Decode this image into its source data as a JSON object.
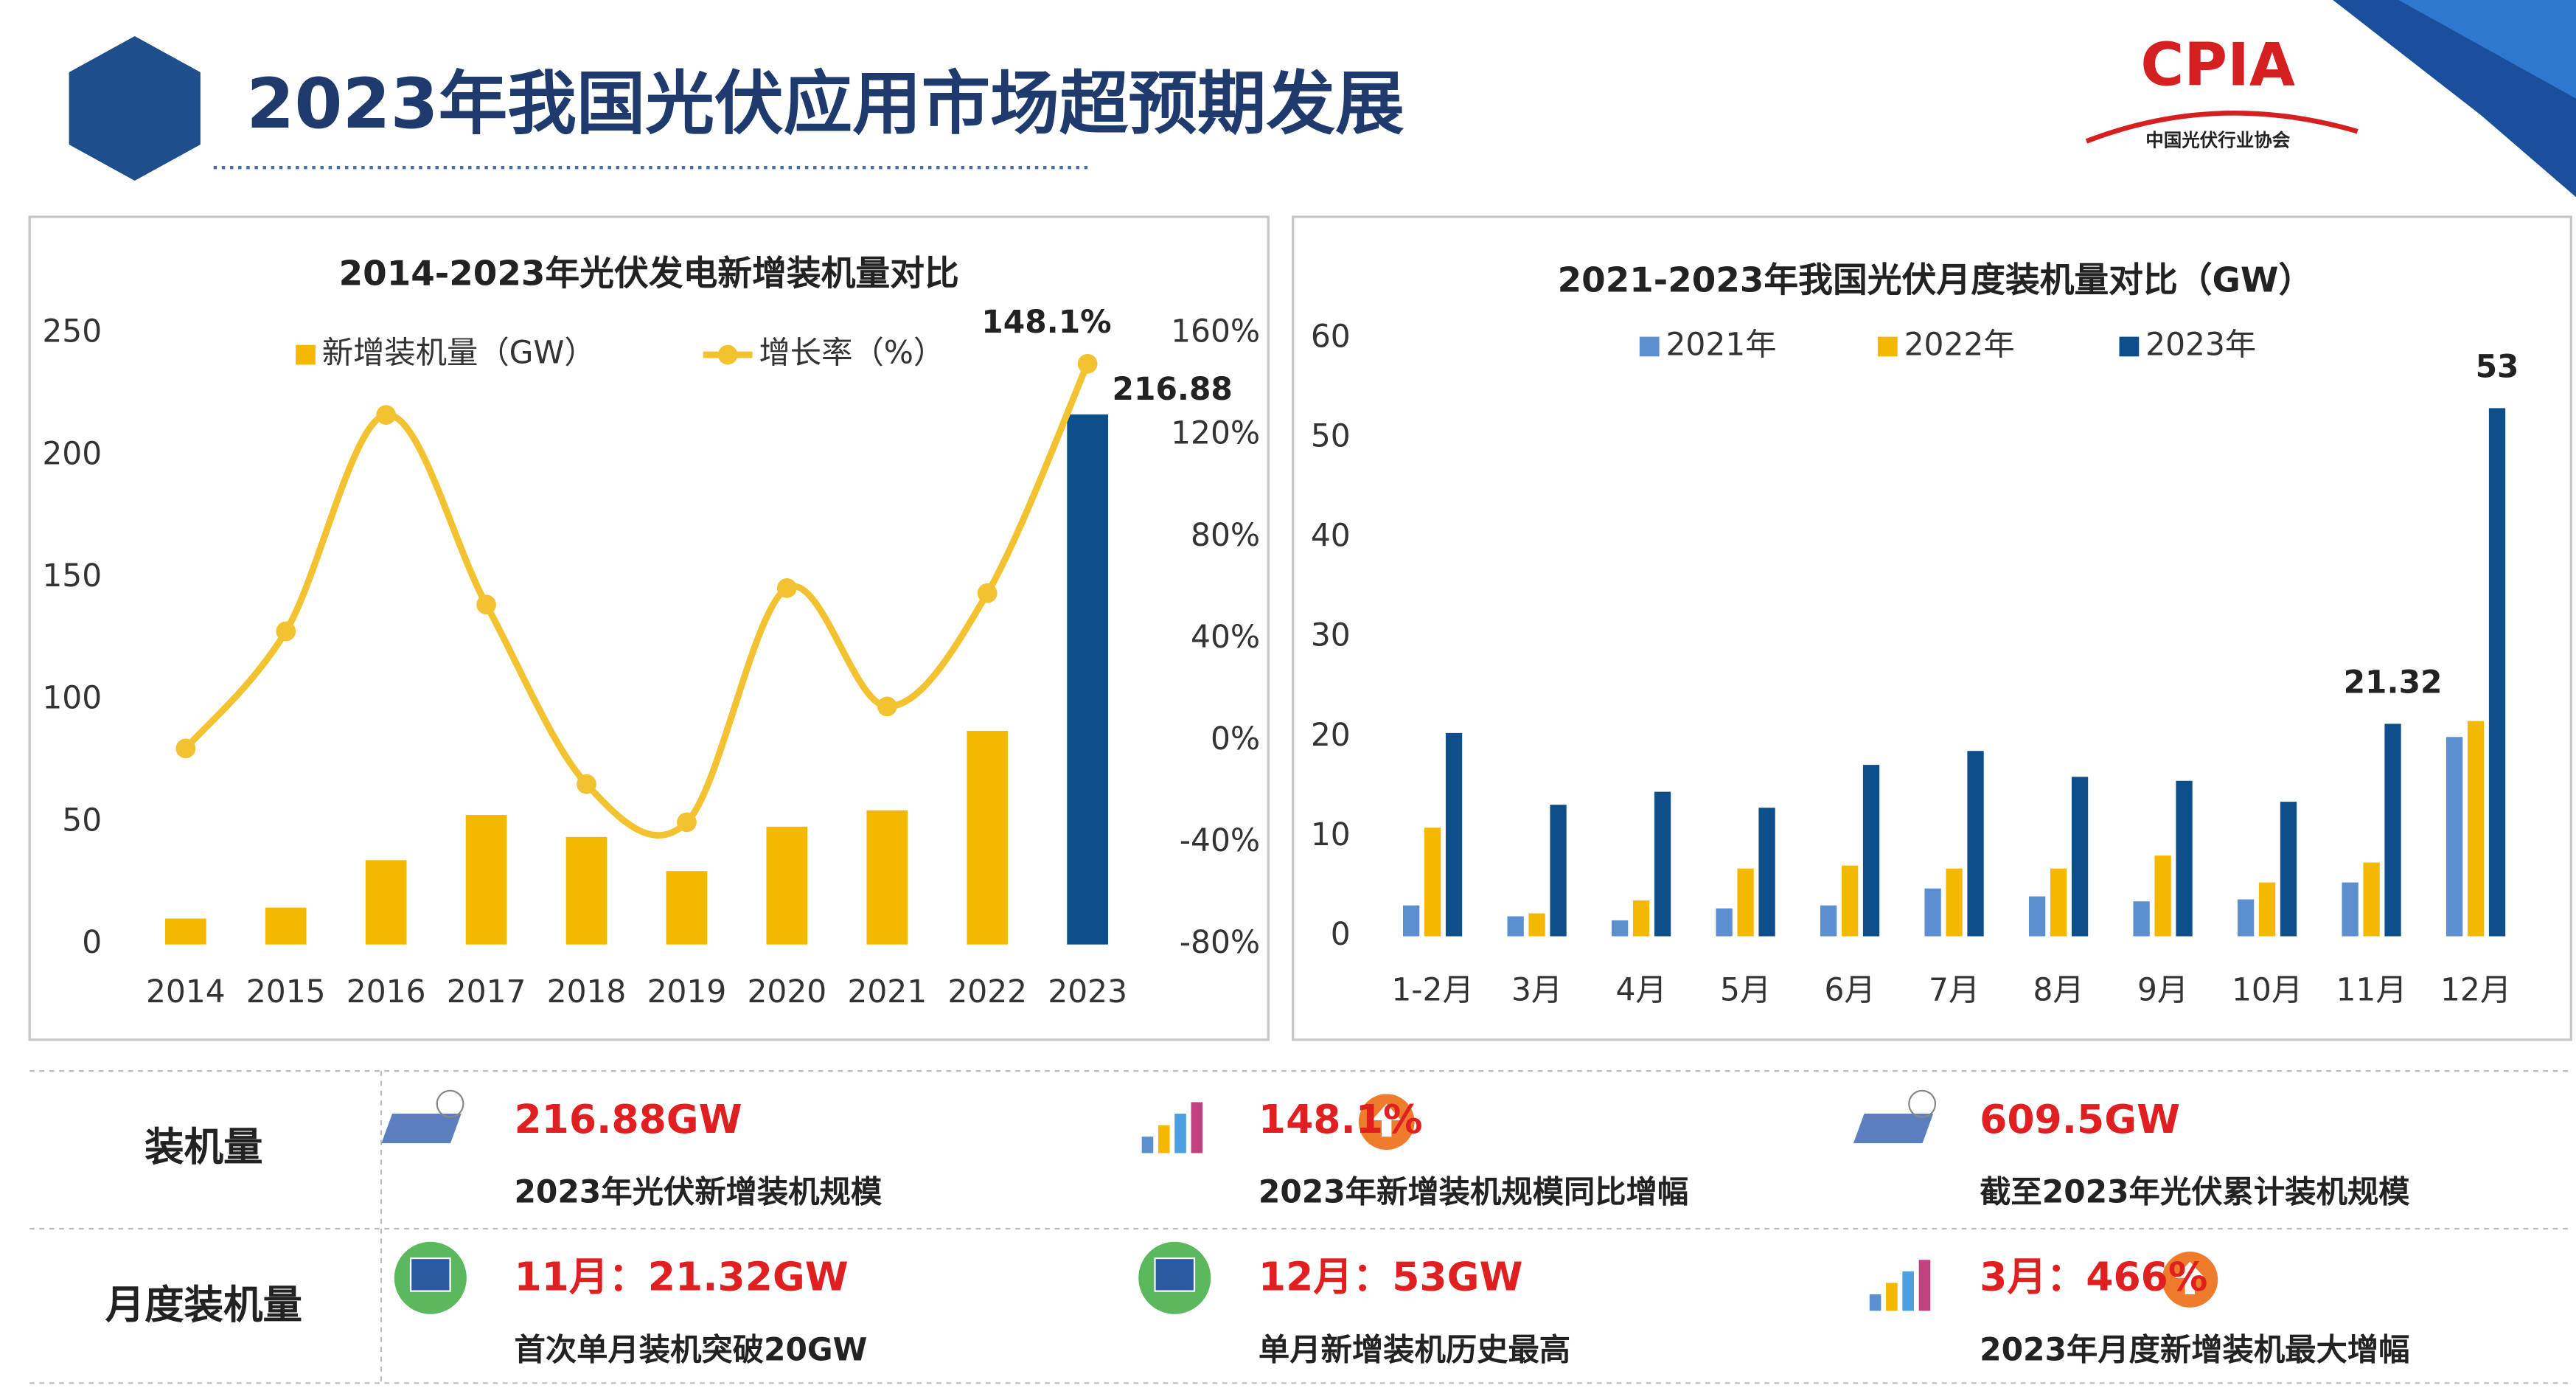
{
  "header": {
    "title": "2023年我国光伏应用市场超预期发展",
    "logo": "CPIA",
    "logo_subtitle": "中国光伏行业协会"
  },
  "chart_data": [
    {
      "type": "bar",
      "title": "2014-2023年光伏发电新增装机量对比",
      "categories": [
        "2014",
        "2015",
        "2016",
        "2017",
        "2018",
        "2019",
        "2020",
        "2021",
        "2022",
        "2023"
      ],
      "series": [
        {
          "name": "新增装机量（GW）",
          "color": "#f5b800",
          "colors": [
            "#f5b800",
            "#f5b800",
            "#f5b800",
            "#f5b800",
            "#f5b800",
            "#f5b800",
            "#f5b800",
            "#f5b800",
            "#f5b800",
            "#0d4f8b"
          ],
          "values": [
            10.6,
            15.1,
            34.5,
            53,
            44,
            30,
            48.2,
            54.9,
            87.4,
            216.88
          ],
          "value_labels": [
            null,
            null,
            null,
            null,
            null,
            null,
            null,
            null,
            null,
            "216.88"
          ]
        },
        {
          "name": "增长率（%）",
          "type": "line",
          "axis": "y2",
          "color": "#f2c230",
          "values": [
            -3,
            43,
            128,
            53.5,
            -17,
            -32,
            60,
            13.5,
            58,
            148.1
          ],
          "value_labels": [
            null,
            null,
            null,
            null,
            null,
            null,
            null,
            null,
            null,
            "148.1%"
          ]
        }
      ],
      "ylim": [
        0,
        250
      ],
      "yticks": [
        0,
        50,
        100,
        150,
        200,
        250
      ],
      "y2lim": [
        -80,
        160
      ],
      "y2ticks": [
        {
          "value": -80,
          "label": "-80%"
        },
        {
          "value": -40,
          "label": "-40%"
        },
        {
          "value": 0,
          "label": "0%"
        },
        {
          "value": 40,
          "label": "40%"
        },
        {
          "value": 80,
          "label": "80%"
        },
        {
          "value": 120,
          "label": "120%"
        },
        {
          "value": 160,
          "label": "160%"
        }
      ],
      "legend": "top",
      "grid": false
    },
    {
      "type": "bar",
      "title": "2021-2023年我国光伏月度装机量对比（GW）",
      "categories": [
        "1-2月",
        "3月",
        "4月",
        "5月",
        "6月",
        "7月",
        "8月",
        "9月",
        "10月",
        "11月",
        "12月"
      ],
      "series": [
        {
          "name": "2021年",
          "color": "#5b8fd0",
          "values": [
            3.1,
            2,
            1.6,
            2.8,
            3.1,
            4.8,
            4,
            3.5,
            3.7,
            5.4,
            20
          ]
        },
        {
          "name": "2022年",
          "color": "#f5b800",
          "values": [
            10.9,
            2.3,
            3.6,
            6.8,
            7.1,
            6.8,
            6.8,
            8.1,
            5.4,
            7.4,
            21.6
          ]
        },
        {
          "name": "2023年",
          "color": "#0d4f8b",
          "values": [
            20.4,
            13.2,
            14.5,
            12.9,
            17.2,
            18.6,
            16,
            15.6,
            13.5,
            21.32,
            53
          ],
          "value_labels": [
            null,
            null,
            null,
            null,
            null,
            null,
            null,
            null,
            null,
            "21.32",
            "53"
          ]
        }
      ],
      "ylim": [
        0,
        60
      ],
      "yticks": [
        0,
        10,
        20,
        30,
        40,
        50,
        60
      ],
      "legend": "top",
      "grid": false
    }
  ],
  "summary": {
    "rows": [
      {
        "label": "装机量",
        "items": [
          {
            "value": "216.88GW",
            "text": "2023年光伏新增装机规模"
          },
          {
            "value": "148.1%",
            "text": "2023年新增装机规模同比增幅"
          },
          {
            "value": "609.5GW",
            "text": "截至2023年光伏累计装机规模"
          }
        ]
      },
      {
        "label": "月度装机量",
        "items": [
          {
            "value": "11月：21.32GW",
            "text": "首次单月装机突破20GW"
          },
          {
            "value": "12月：53GW",
            "text": "单月新增装机历史最高"
          },
          {
            "value": "3月：466%",
            "text": "2023年月度新增装机最大增幅"
          }
        ]
      }
    ]
  }
}
